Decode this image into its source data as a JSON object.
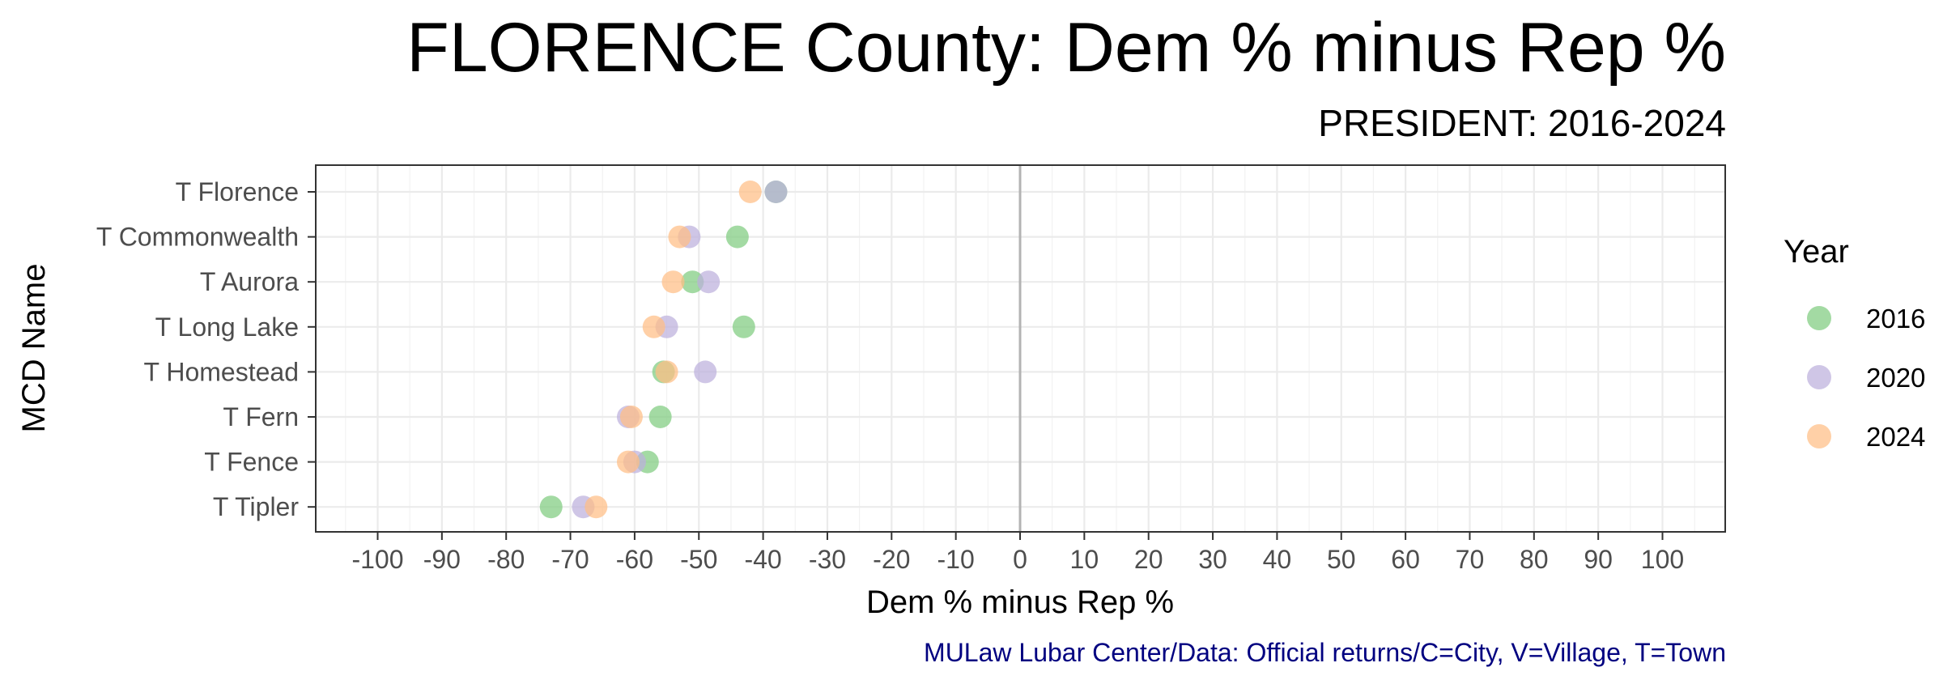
{
  "chart_data": {
    "type": "scatter",
    "title": "FLORENCE County: Dem % minus Rep %",
    "subtitle": "PRESIDENT: 2016-2024",
    "xlabel": "Dem % minus Rep %",
    "ylabel": "MCD Name",
    "xlim": [
      -105,
      105
    ],
    "x_ticks": [
      -100,
      -90,
      -80,
      -70,
      -60,
      -50,
      -40,
      -30,
      -20,
      -10,
      0,
      10,
      20,
      30,
      40,
      50,
      60,
      70,
      80,
      90,
      100
    ],
    "categories": [
      "T Florence",
      "T Commonwealth",
      "T Aurora",
      "T Long Lake",
      "T Homestead",
      "T Fern",
      "T Fence",
      "T Tipler"
    ],
    "series": [
      {
        "name": "2016",
        "color": "#7fcc7f",
        "values": [
          -38,
          -44,
          -51,
          -43,
          -55.5,
          -56,
          -58,
          -73
        ]
      },
      {
        "name": "2020",
        "color": "#bdb0dc",
        "values": [
          -38,
          -51.5,
          -48.5,
          -55,
          -49,
          -61,
          -60,
          -68
        ]
      },
      {
        "name": "2024",
        "color": "#ffbe85",
        "values": [
          -42,
          -53,
          -54,
          -57,
          -55,
          -60.5,
          -61,
          -66
        ]
      }
    ],
    "legend_title": "Year",
    "legend_position": "right",
    "grid": true,
    "caption": "MULaw Lubar Center/Data: Official returns/C=City, V=Village, T=Town"
  }
}
